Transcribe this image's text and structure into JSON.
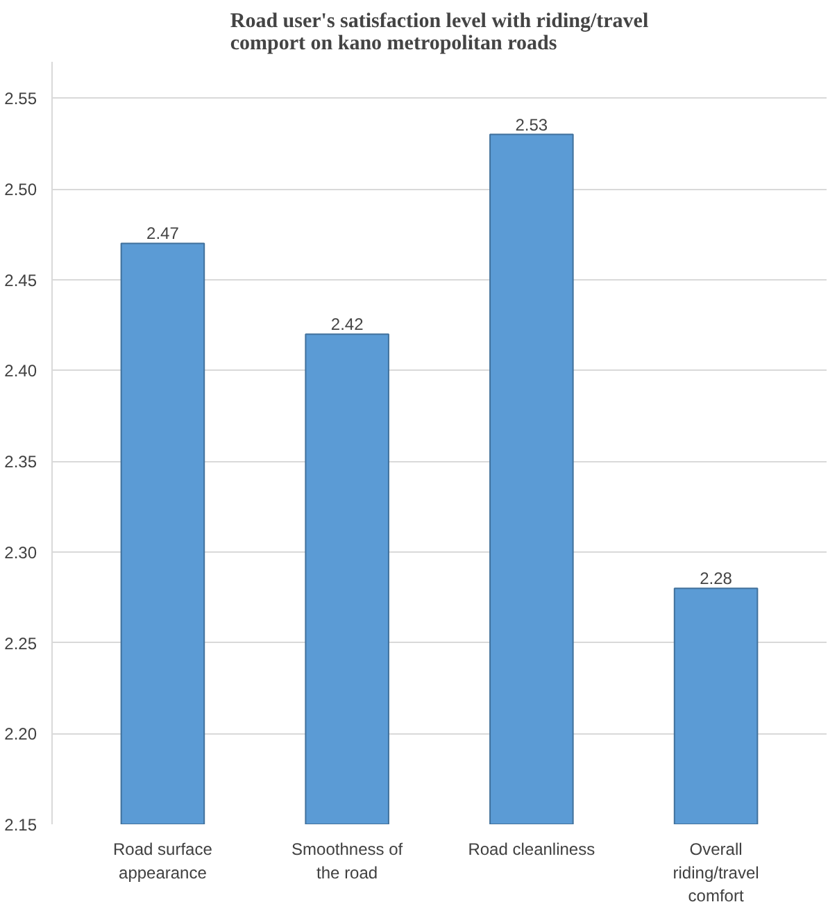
{
  "chart_data": {
    "type": "bar",
    "title": "Road user's satisfaction level with riding/travel comport on kano metropolitan roads",
    "categories": [
      "Road surface appearance",
      "Smoothness of the road",
      "Road cleanliness",
      "Overall riding/travel comfort"
    ],
    "values": [
      2.47,
      2.42,
      2.53,
      2.28
    ],
    "color": "#5b9bd5",
    "ylim": [
      2.15,
      2.57
    ],
    "yticks": [
      "2.15",
      "2.20",
      "2.25",
      "2.30",
      "2.35",
      "2.40",
      "2.45",
      "2.50",
      "2.55"
    ],
    "grid": "y",
    "data_labels": true
  }
}
